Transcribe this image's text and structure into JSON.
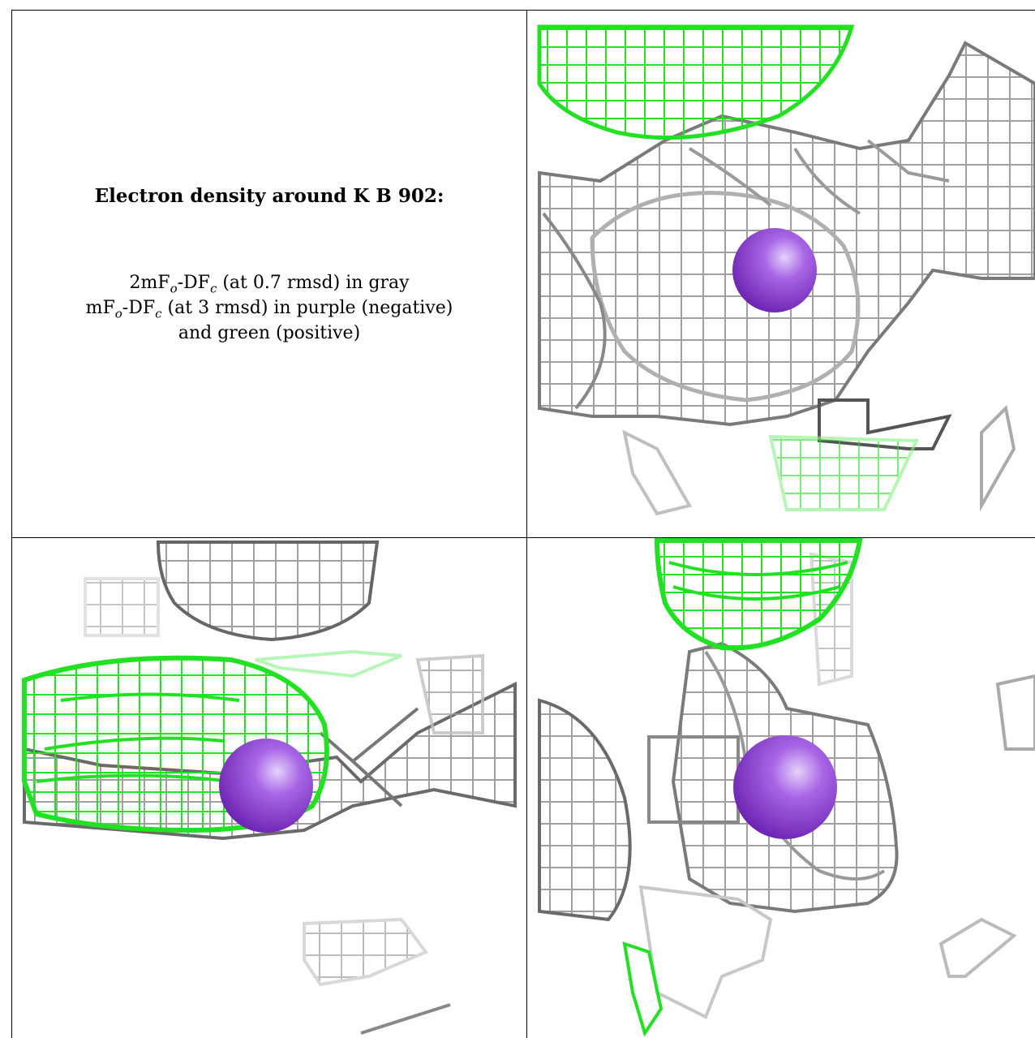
{
  "figure": {
    "title": "Electron density around K B 902:",
    "legend": {
      "line1_a": "2mF",
      "line1_sub1": "o",
      "line1_b": "-DF",
      "line1_sub2": "c",
      "line1_c": " (at 0.7 rmsd) in gray",
      "line2_a": "mF",
      "line2_sub1": "o",
      "line2_b": "-DF",
      "line2_sub2": "c",
      "line2_c": " (at 3 rmsd) in purple (negative)",
      "line3": "and green (positive)"
    }
  },
  "colors": {
    "mesh_gray": "#9a9a9a",
    "mesh_dark": "#555555",
    "mesh_light": "#d8d8d8",
    "mesh_green": "#22e022",
    "mesh_green_light": "#88ee88",
    "ion_purple": "#8a3fd0",
    "ion_highlight": "#c9a6f2",
    "border": "#000000"
  },
  "panels": [
    {
      "name": "view-top-right",
      "atom": "K"
    },
    {
      "name": "view-bottom-left",
      "atom": "K"
    },
    {
      "name": "view-bottom-right",
      "atom": "K"
    }
  ]
}
